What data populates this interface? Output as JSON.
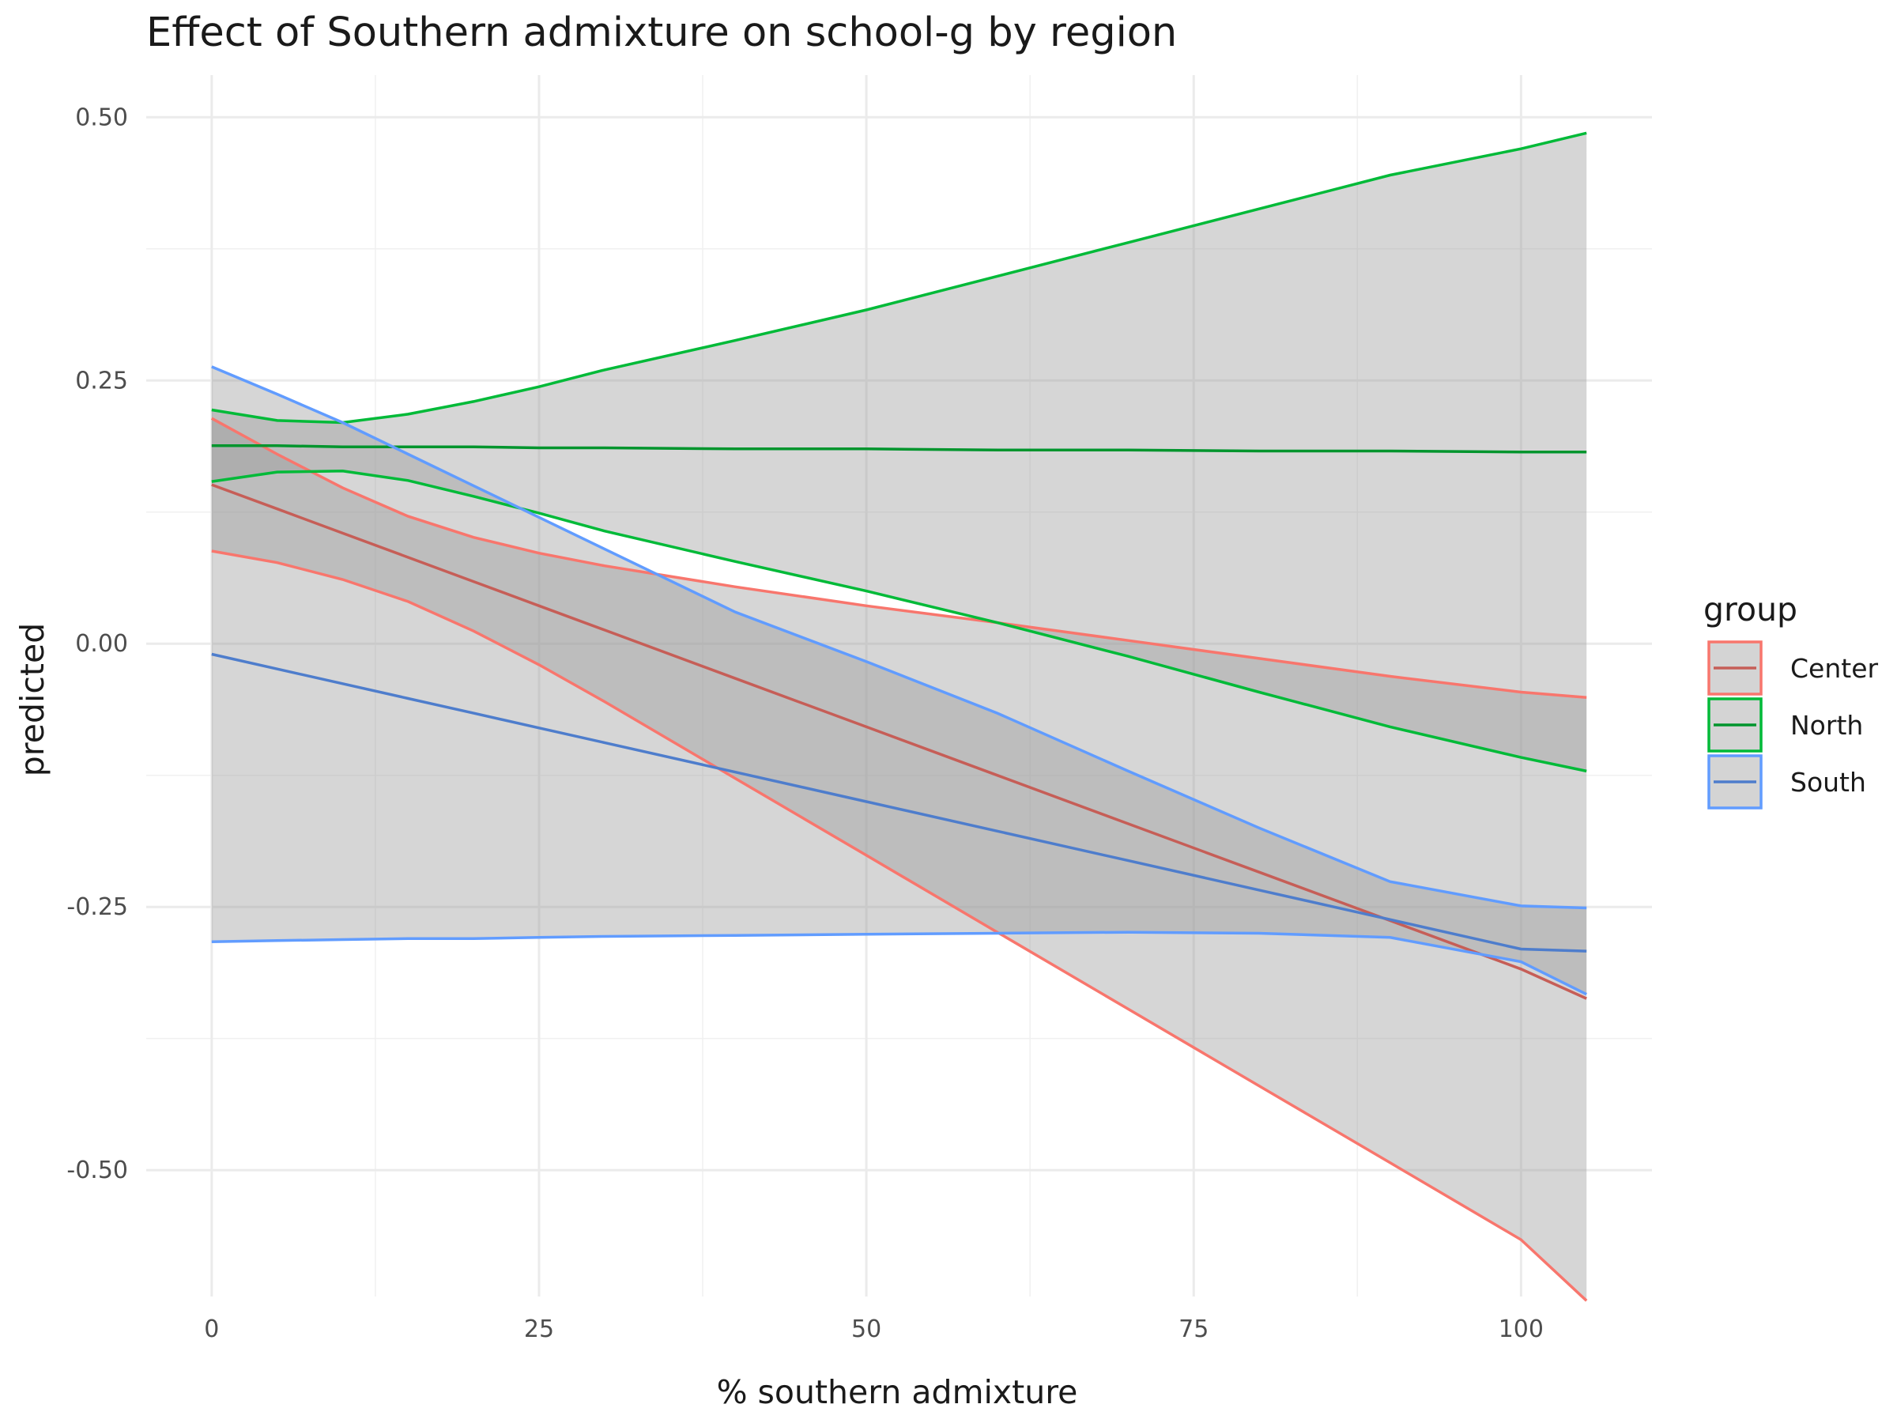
{
  "chart_data": {
    "type": "line",
    "title": "Effect of Southern admixture on school-g by region",
    "xlabel": "% southern admixture",
    "ylabel": "predicted",
    "xlim": [
      -5,
      110
    ],
    "ylim": [
      -0.62,
      0.54
    ],
    "x_ticks": [
      0,
      25,
      50,
      75,
      100
    ],
    "x_tick_labels": [
      "0",
      "25",
      "50",
      "75",
      "100"
    ],
    "y_ticks": [
      0.5,
      0.25,
      0.0,
      -0.25,
      -0.5
    ],
    "y_tick_labels": [
      "0.50",
      "0.25",
      "0.00",
      "-0.25",
      "-0.50"
    ],
    "grid": true,
    "legend": {
      "title": "group",
      "position": "right"
    },
    "series": [
      {
        "name": "Center",
        "color": "#F8766D",
        "x": [
          0,
          5,
          10,
          15,
          20,
          25,
          30,
          40,
          50,
          60,
          70,
          80,
          90,
          100,
          105
        ],
        "fit": [
          0.151,
          0.128,
          0.105,
          0.082,
          0.059,
          0.036,
          0.013,
          -0.033,
          -0.079,
          -0.125,
          -0.171,
          -0.217,
          -0.263,
          -0.309,
          -0.337
        ],
        "lower": [
          0.088,
          0.077,
          0.061,
          0.04,
          0.012,
          -0.02,
          -0.055,
          -0.128,
          -0.201,
          -0.274,
          -0.347,
          -0.42,
          -0.493,
          -0.566,
          -0.624
        ],
        "upper": [
          0.214,
          0.18,
          0.148,
          0.121,
          0.101,
          0.086,
          0.074,
          0.054,
          0.036,
          0.02,
          0.003,
          -0.014,
          -0.031,
          -0.046,
          -0.051
        ]
      },
      {
        "name": "North",
        "color": "#00BA38",
        "x": [
          0,
          5,
          10,
          15,
          20,
          25,
          30,
          40,
          50,
          60,
          70,
          80,
          90,
          100,
          105
        ],
        "fit": [
          0.188,
          0.188,
          0.187,
          0.187,
          0.187,
          0.186,
          0.186,
          0.185,
          0.185,
          0.184,
          0.184,
          0.183,
          0.183,
          0.182,
          0.182
        ],
        "lower": [
          0.154,
          0.163,
          0.164,
          0.155,
          0.14,
          0.124,
          0.107,
          0.078,
          0.05,
          0.02,
          -0.012,
          -0.046,
          -0.079,
          -0.108,
          -0.121
        ],
        "upper": [
          0.222,
          0.212,
          0.21,
          0.218,
          0.23,
          0.244,
          0.26,
          0.288,
          0.317,
          0.349,
          0.381,
          0.413,
          0.445,
          0.47,
          0.485
        ]
      },
      {
        "name": "South",
        "color": "#619CFF",
        "x": [
          0,
          5,
          10,
          15,
          20,
          25,
          30,
          40,
          50,
          60,
          70,
          80,
          90,
          100,
          105
        ],
        "fit": [
          -0.01,
          -0.024,
          -0.038,
          -0.052,
          -0.066,
          -0.08,
          -0.094,
          -0.122,
          -0.15,
          -0.178,
          -0.206,
          -0.234,
          -0.262,
          -0.29,
          -0.292
        ],
        "lower": [
          -0.283,
          -0.282,
          -0.281,
          -0.28,
          -0.28,
          -0.279,
          -0.278,
          -0.277,
          -0.276,
          -0.275,
          -0.274,
          -0.275,
          -0.279,
          -0.302,
          -0.333
        ],
        "upper": [
          0.263,
          0.237,
          0.21,
          0.18,
          0.15,
          0.12,
          0.09,
          0.03,
          -0.017,
          -0.066,
          -0.121,
          -0.175,
          -0.226,
          -0.249,
          -0.251
        ]
      }
    ]
  }
}
